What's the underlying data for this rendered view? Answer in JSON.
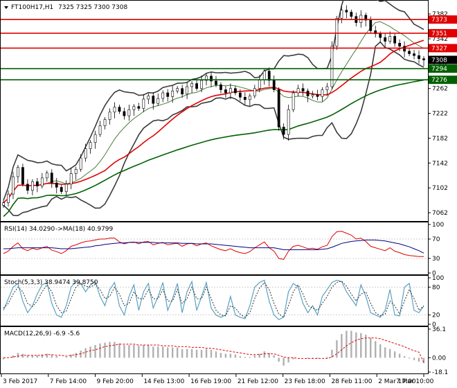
{
  "header": {
    "symbol_label": "FT100H17,H1",
    "ohlc_label": "7325 7325 7300 7308"
  },
  "colors": {
    "red": "#e00000",
    "green": "#006000",
    "bollinger": "#3a3a3a",
    "ma_fast": "#4a7a3a",
    "badge_price": "#000000",
    "rsi": "#e00000",
    "rsi_ma": "#000080",
    "stoch_main": "#5aa0c0",
    "stoch_signal": "#2a2a2a",
    "macd_hist": "#b0b0b0",
    "macd_signal": "#e00000"
  },
  "chart_data": [
    {
      "type": "candlestick",
      "pane": "price",
      "ylim": [
        7052,
        7400
      ],
      "y_ticks": [
        7062,
        7102,
        7142,
        7182,
        7222,
        7262,
        7302,
        7342,
        7382
      ],
      "horizontal_levels": [
        {
          "value": 7373,
          "label": "7373",
          "color": "red"
        },
        {
          "value": 7351,
          "label": "7351",
          "color": "red"
        },
        {
          "value": 7327,
          "label": "7327",
          "color": "red"
        },
        {
          "value": 7294,
          "label": "7294",
          "color": "green"
        },
        {
          "value": 7276,
          "label": "7276",
          "color": "green"
        }
      ],
      "current_price": {
        "value": 7308,
        "label": "7308"
      },
      "series": [
        {
          "name": "close",
          "values": [
            7078,
            7092,
            7120,
            7135,
            7108,
            7098,
            7112,
            7105,
            7118,
            7126,
            7110,
            7103,
            7096,
            7108,
            7125,
            7132,
            7150,
            7165,
            7175,
            7188,
            7202,
            7212,
            7224,
            7232,
            7225,
            7218,
            7228,
            7233,
            7230,
            7245,
            7250,
            7238,
            7246,
            7255,
            7249,
            7258,
            7262,
            7253,
            7265,
            7270,
            7262,
            7275,
            7282,
            7274,
            7268,
            7260,
            7255,
            7262,
            7255,
            7248,
            7244,
            7250,
            7262,
            7276,
            7290,
            7275,
            7260,
            7200,
            7188,
            7228,
            7255,
            7262,
            7258,
            7250,
            7252,
            7249,
            7260,
            7265,
            7330,
            7375,
            7388,
            7385,
            7378,
            7368,
            7380,
            7372,
            7355,
            7350,
            7344,
            7338,
            7346,
            7335,
            7330,
            7322,
            7318,
            7315,
            7310,
            7308
          ]
        }
      ]
    },
    {
      "type": "line",
      "pane": "RSI",
      "title": "RSI(14) 34.0290",
      "ma_title": "->MA(18) 40.9799",
      "ylim": [
        0,
        100
      ],
      "y_ticks": [
        0,
        30,
        70,
        100
      ],
      "series": [
        {
          "name": "RSI",
          "values": [
            40,
            45,
            55,
            62,
            50,
            46,
            51,
            48,
            52,
            55,
            47,
            44,
            40,
            46,
            55,
            58,
            62,
            65,
            66,
            68,
            70,
            70,
            72,
            72,
            64,
            60,
            63,
            64,
            60,
            64,
            65,
            58,
            61,
            63,
            58,
            60,
            61,
            55,
            60,
            61,
            56,
            60,
            62,
            56,
            52,
            48,
            46,
            50,
            45,
            42,
            40,
            44,
            52,
            58,
            64,
            52,
            45,
            30,
            28,
            45,
            55,
            57,
            54,
            50,
            51,
            49,
            54,
            57,
            75,
            85,
            86,
            82,
            78,
            70,
            72,
            65,
            55,
            52,
            49,
            46,
            52,
            45,
            42,
            38,
            36,
            35,
            34,
            34
          ]
        },
        {
          "name": "MA",
          "values": [
            50,
            50,
            51,
            52,
            52,
            52,
            52,
            52,
            52,
            52,
            52,
            51,
            50,
            50,
            50,
            51,
            52,
            53,
            54,
            56,
            57,
            59,
            60,
            61,
            62,
            62,
            63,
            63,
            63,
            63,
            63,
            63,
            62,
            62,
            62,
            62,
            62,
            61,
            61,
            61,
            60,
            60,
            60,
            60,
            59,
            58,
            57,
            56,
            55,
            54,
            53,
            52,
            52,
            52,
            52,
            52,
            52,
            50,
            48,
            48,
            48,
            48,
            48,
            48,
            48,
            48,
            49,
            50,
            53,
            57,
            61,
            63,
            65,
            66,
            67,
            68,
            68,
            68,
            67,
            66,
            64,
            62,
            60,
            57,
            54,
            50,
            46,
            41
          ]
        }
      ]
    },
    {
      "type": "line",
      "pane": "Stochastic",
      "title": "Stoch(5,3,3) 38.9474 39.8750",
      "ylim": [
        0,
        100
      ],
      "y_ticks": [
        0,
        20,
        80,
        100
      ],
      "series": [
        {
          "name": "main",
          "values": [
            30,
            55,
            80,
            88,
            50,
            25,
            40,
            65,
            85,
            90,
            45,
            20,
            15,
            40,
            80,
            92,
            88,
            70,
            85,
            92,
            60,
            40,
            75,
            90,
            40,
            20,
            60,
            85,
            30,
            70,
            88,
            35,
            60,
            90,
            30,
            55,
            88,
            25,
            70,
            92,
            30,
            60,
            90,
            35,
            20,
            15,
            20,
            60,
            20,
            15,
            12,
            40,
            80,
            90,
            95,
            50,
            20,
            10,
            15,
            70,
            88,
            80,
            45,
            25,
            40,
            20,
            60,
            75,
            90,
            95,
            92,
            70,
            55,
            40,
            85,
            60,
            25,
            20,
            15,
            30,
            75,
            20,
            18,
            80,
            88,
            30,
            25,
            39
          ]
        },
        {
          "name": "signal",
          "values": [
            35,
            45,
            65,
            80,
            70,
            45,
            38,
            50,
            70,
            85,
            70,
            40,
            25,
            28,
            55,
            80,
            88,
            82,
            80,
            86,
            75,
            55,
            60,
            80,
            65,
            40,
            45,
            70,
            55,
            55,
            75,
            55,
            55,
            75,
            50,
            50,
            75,
            45,
            55,
            80,
            55,
            55,
            80,
            55,
            30,
            20,
            18,
            40,
            35,
            22,
            15,
            25,
            55,
            78,
            90,
            75,
            45,
            22,
            15,
            40,
            70,
            85,
            65,
            40,
            35,
            30,
            45,
            60,
            80,
            90,
            93,
            82,
            65,
            50,
            65,
            70,
            45,
            25,
            18,
            22,
            50,
            40,
            22,
            50,
            75,
            55,
            30,
            40
          ]
        }
      ]
    },
    {
      "type": "bar",
      "pane": "MACD",
      "title": "MACD(12,26,9) -6.9 -5.6",
      "ylim": [
        -18.1,
        36.1
      ],
      "y_ticks": [
        -18.1,
        0.0,
        36.1
      ],
      "y_tick_labels": [
        "-18.1",
        "0.00",
        "36.1"
      ],
      "series": [
        {
          "name": "macd",
          "values": [
            -2,
            0,
            3,
            6,
            5,
            3,
            3,
            3,
            4,
            5,
            4,
            2,
            0,
            1,
            4,
            6,
            9,
            12,
            14,
            16,
            18,
            19,
            20,
            20,
            18,
            16,
            16,
            16,
            15,
            16,
            16,
            14,
            14,
            14,
            13,
            13,
            13,
            11,
            11,
            11,
            10,
            10,
            11,
            10,
            8,
            6,
            5,
            5,
            4,
            2,
            1,
            1,
            3,
            5,
            8,
            6,
            3,
            -5,
            -10,
            -6,
            -2,
            0,
            0,
            -1,
            -1,
            -1,
            0,
            1,
            10,
            22,
            30,
            34,
            34,
            32,
            31,
            29,
            25,
            21,
            17,
            13,
            11,
            8,
            5,
            2,
            -1,
            -3,
            -5,
            -7
          ]
        },
        {
          "name": "signal",
          "values": [
            0,
            0,
            1,
            2,
            3,
            3,
            3,
            3,
            3,
            4,
            4,
            3,
            3,
            2,
            3,
            4,
            5,
            7,
            9,
            10,
            12,
            14,
            15,
            16,
            17,
            17,
            17,
            17,
            16,
            16,
            16,
            16,
            16,
            15,
            15,
            15,
            14,
            14,
            14,
            13,
            13,
            13,
            12,
            12,
            11,
            10,
            9,
            8,
            7,
            6,
            5,
            4,
            4,
            4,
            5,
            5,
            5,
            3,
            1,
            0,
            0,
            -1,
            -1,
            -1,
            -1,
            -1,
            -1,
            -1,
            1,
            5,
            10,
            15,
            19,
            22,
            24,
            25,
            25,
            25,
            24,
            22,
            20,
            18,
            16,
            14,
            11,
            9,
            7,
            -6
          ]
        }
      ]
    }
  ],
  "x_axis": {
    "labels": [
      "3 Feb 2017",
      "7 Feb 14:00",
      "9 Feb 20:00",
      "14 Feb 13:00",
      "16 Feb 19:00",
      "21 Feb 12:00",
      "23 Feb 18:00",
      "28 Feb 11:00",
      "2 Mar 17:00",
      "7 Mar 10:00"
    ]
  }
}
